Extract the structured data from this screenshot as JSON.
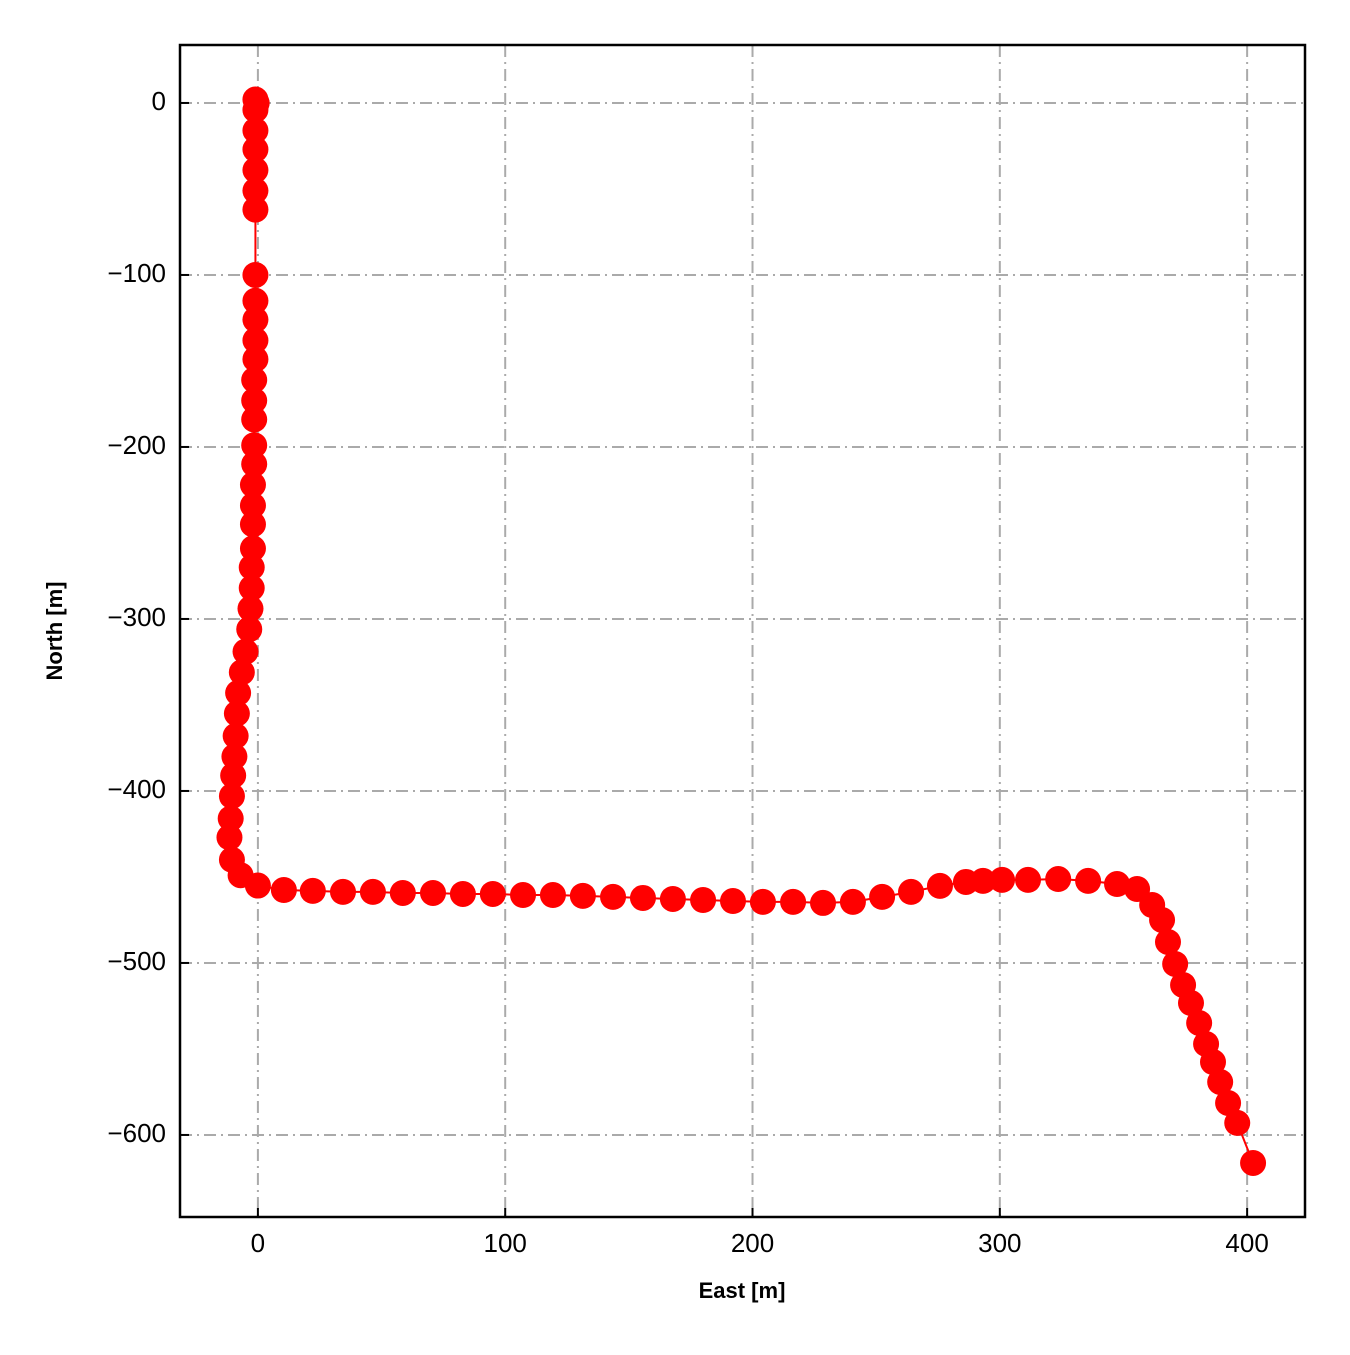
{
  "chart_data": {
    "type": "line",
    "x_label": "East [m]",
    "y_label": "North [m]",
    "color": "#ff0000",
    "grid": true,
    "marker": "circle",
    "xlim": [
      -31.5,
      423.4
    ],
    "ylim": [
      -647.7,
      33.7
    ],
    "xticks": [
      0,
      100,
      200,
      300,
      400
    ],
    "yticks": [
      {
        "value": -600,
        "label": "−600"
      },
      {
        "value": -500,
        "label": "−500"
      },
      {
        "value": -400,
        "label": "−400"
      },
      {
        "value": -300,
        "label": "−300"
      },
      {
        "value": -200,
        "label": "−200"
      },
      {
        "value": -100,
        "label": "−100"
      },
      0
    ],
    "x": [
      -1,
      -0.5,
      -1,
      -1,
      -1,
      -1,
      -1,
      -1,
      -1,
      -1,
      -1,
      -1,
      -1,
      -1.5,
      -1.5,
      -1.5,
      -1.5,
      -1.5,
      -2,
      -2,
      -2,
      -2,
      -2.5,
      -2.5,
      -3,
      -3.5,
      -5,
      -6.5,
      -8,
      -8.5,
      -9,
      -9.5,
      -10,
      -10.5,
      -11,
      -11.5,
      -10.5,
      -7,
      0,
      10.5,
      22.2,
      34.4,
      46.5,
      58.6,
      70.8,
      82.9,
      95.0,
      107.2,
      119.3,
      131.4,
      143.6,
      155.7,
      167.8,
      180.0,
      192.1,
      204.2,
      216.4,
      228.5,
      240.6,
      252.4,
      264.1,
      275.8,
      286.3,
      293.2,
      300.9,
      311.4,
      323.6,
      335.7,
      347.4,
      355.5,
      361.6,
      365.6,
      368.0,
      370.9,
      374.1,
      377.3,
      380.6,
      383.4,
      386.2,
      389.1,
      392.3,
      396.0,
      402.4
    ],
    "y": [
      2,
      0,
      -4,
      -16,
      -27,
      -39,
      -51,
      -62,
      -100,
      -115,
      -126,
      -138,
      -149,
      -161,
      -173,
      -184,
      -199,
      -210,
      -222,
      -234,
      -245,
      -259,
      -270,
      -282,
      -294,
      -306,
      -319,
      -331,
      -343,
      -355,
      -368,
      -380,
      -391,
      -403,
      -416,
      -427,
      -440,
      -449,
      -455,
      -457.6,
      -458.1,
      -458.7,
      -458.7,
      -459.3,
      -459.3,
      -459.9,
      -459.9,
      -460.5,
      -460.5,
      -461.0,
      -461.6,
      -462.2,
      -462.8,
      -463.4,
      -464.0,
      -464.5,
      -464.5,
      -465.1,
      -464.5,
      -461.6,
      -458.7,
      -455.2,
      -452.9,
      -452.3,
      -451.7,
      -451.7,
      -451.2,
      -452.3,
      -454.1,
      -457.0,
      -466.3,
      -475.0,
      -487.8,
      -500.6,
      -512.8,
      -523.3,
      -534.9,
      -547.1,
      -557.6,
      -569.2,
      -581.4,
      -593.0,
      -616.3
    ]
  }
}
